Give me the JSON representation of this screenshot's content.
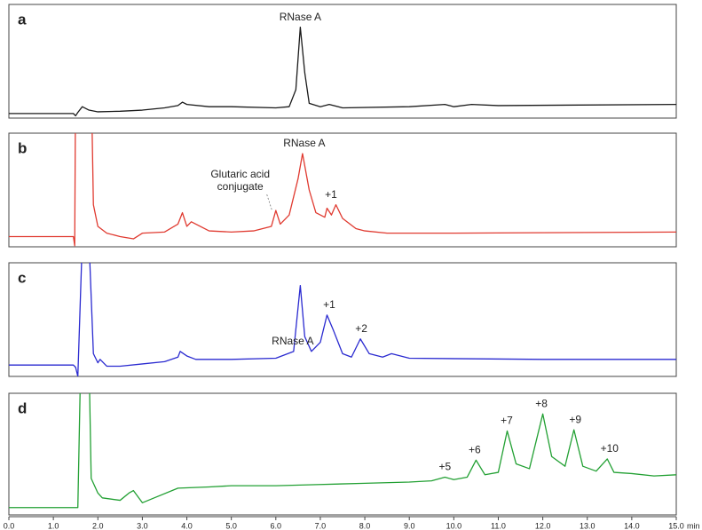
{
  "chart_data": [
    {
      "type": "line",
      "panel_label": "a",
      "x": [
        0,
        1.45,
        1.5,
        1.55,
        1.65,
        1.8,
        2.0,
        2.5,
        3.0,
        3.5,
        3.8,
        3.9,
        4.0,
        4.5,
        5.0,
        6.0,
        6.3,
        6.45,
        6.55,
        6.65,
        6.75,
        7.0,
        7.2,
        7.5,
        9.0,
        9.8,
        10.0,
        10.4,
        11.0,
        15.0
      ],
      "series": [
        {
          "color": "#1a1a1a",
          "values": [
            4,
            4,
            2,
            5,
            10,
            7,
            5.5,
            6,
            7,
            9,
            11,
            14,
            12,
            10,
            10,
            9,
            10,
            25,
            80,
            40,
            13,
            10,
            12,
            9,
            10,
            12,
            10,
            12,
            11,
            12
          ]
        }
      ],
      "xlim": [
        0,
        15
      ],
      "ylim": [
        0,
        100
      ],
      "annotations": [
        {
          "text": "RNase A",
          "x": 6.55
        }
      ]
    },
    {
      "type": "line",
      "panel_label": "b",
      "x": [
        0,
        1.45,
        1.48,
        1.5,
        1.85,
        1.9,
        2.0,
        2.2,
        2.5,
        2.8,
        3.0,
        3.5,
        3.8,
        3.9,
        4.0,
        4.1,
        4.5,
        5.0,
        5.5,
        5.9,
        6.0,
        6.1,
        6.3,
        6.5,
        6.6,
        6.75,
        6.9,
        7.1,
        7.15,
        7.25,
        7.35,
        7.5,
        7.8,
        8.0,
        8.5,
        10.0,
        15.0
      ],
      "series": [
        {
          "color": "#e03a30",
          "values": [
            9,
            9,
            1,
            150,
            150,
            37,
            18,
            12,
            9,
            7,
            12,
            13,
            20,
            30,
            18,
            22,
            14,
            13,
            14,
            18,
            32,
            20,
            28,
            60,
            82,
            50,
            30,
            26,
            34,
            28,
            37,
            25,
            16,
            14,
            12,
            12,
            13
          ]
        }
      ],
      "xlim": [
        0,
        15
      ],
      "ylim": [
        0,
        100
      ],
      "annotations": [
        {
          "text": "RNase A",
          "x": 6.64
        },
        {
          "text": "+1",
          "x": 7.24
        },
        {
          "lines": [
            "Glutaric acid",
            "conjugate"
          ],
          "x": 5.2,
          "points_to": 5.97
        }
      ]
    },
    {
      "type": "line",
      "panel_label": "c",
      "x": [
        0,
        1.45,
        1.5,
        1.55,
        1.65,
        1.8,
        1.9,
        2.0,
        2.05,
        2.2,
        2.5,
        3.0,
        3.5,
        3.8,
        3.85,
        4.0,
        4.2,
        5.0,
        6.0,
        6.4,
        6.55,
        6.65,
        6.8,
        7.0,
        7.15,
        7.3,
        7.5,
        7.7,
        7.9,
        8.1,
        8.4,
        8.6,
        9.0,
        12.0,
        15.0
      ],
      "series": [
        {
          "color": "#2a2ad0",
          "values": [
            10,
            10,
            8,
            0,
            120,
            120,
            20,
            12,
            15,
            9,
            9,
            11,
            13,
            17,
            22,
            18,
            15,
            15,
            16,
            22,
            80,
            35,
            22,
            30,
            54,
            40,
            20,
            17,
            33,
            20,
            17,
            20,
            16,
            15,
            15
          ]
        }
      ],
      "xlim": [
        0,
        15
      ],
      "ylim": [
        0,
        100
      ],
      "annotations": [
        {
          "text": "RNase A",
          "x": 6.38
        },
        {
          "text": "+1",
          "x": 7.2
        },
        {
          "text": "+2",
          "x": 7.92
        }
      ]
    },
    {
      "type": "line",
      "panel_label": "d",
      "x": [
        0,
        1.55,
        1.6,
        1.65,
        1.8,
        1.85,
        2.0,
        2.1,
        2.5,
        2.7,
        2.8,
        3.0,
        3.2,
        3.8,
        4.5,
        5.0,
        5.5,
        6.0,
        7.0,
        8.0,
        9.0,
        9.5,
        9.8,
        10.0,
        10.3,
        10.5,
        10.7,
        11.0,
        11.2,
        11.4,
        11.7,
        12.0,
        12.2,
        12.5,
        12.7,
        12.9,
        13.2,
        13.45,
        13.6,
        14.0,
        14.5,
        15.0
      ],
      "series": [
        {
          "color": "#22a033",
          "values": [
            6,
            6,
            100,
            130,
            130,
            30,
            18,
            14,
            12,
            18,
            20,
            10,
            13,
            22,
            23,
            24,
            24,
            24,
            25,
            26,
            27,
            28,
            31,
            29,
            31,
            45,
            33,
            35,
            69,
            42,
            38,
            83,
            48,
            40,
            70,
            40,
            36,
            46,
            35,
            34,
            32,
            33
          ]
        }
      ],
      "xlim": [
        0,
        15
      ],
      "ylim": [
        0,
        100
      ],
      "xticks": [
        {
          "value": 0,
          "label": "0.0"
        },
        {
          "value": 1,
          "label": "1.0"
        },
        {
          "value": 2,
          "label": "2.0"
        },
        {
          "value": 3,
          "label": "3.0"
        },
        {
          "value": 4,
          "label": "4.0"
        },
        {
          "value": 5,
          "label": "5.0"
        },
        {
          "value": 6,
          "label": "6.0"
        },
        {
          "value": 7,
          "label": "7.0"
        },
        {
          "value": 8,
          "label": "8.0"
        },
        {
          "value": 9,
          "label": "9.0"
        },
        {
          "value": 10,
          "label": "10.0"
        },
        {
          "value": 11,
          "label": "11.0"
        },
        {
          "value": 12,
          "label": "12.0"
        },
        {
          "value": 13,
          "label": "13.0"
        },
        {
          "value": 14,
          "label": "14.0"
        },
        {
          "value": 15,
          "label": "15.0"
        }
      ],
      "x_label": "min",
      "annotations": [
        {
          "text": "+5",
          "x": 9.8
        },
        {
          "text": "+6",
          "x": 10.47
        },
        {
          "text": "+7",
          "x": 11.19
        },
        {
          "text": "+8",
          "x": 11.97
        },
        {
          "text": "+9",
          "x": 12.73
        },
        {
          "text": "+10",
          "x": 13.5
        }
      ]
    }
  ]
}
